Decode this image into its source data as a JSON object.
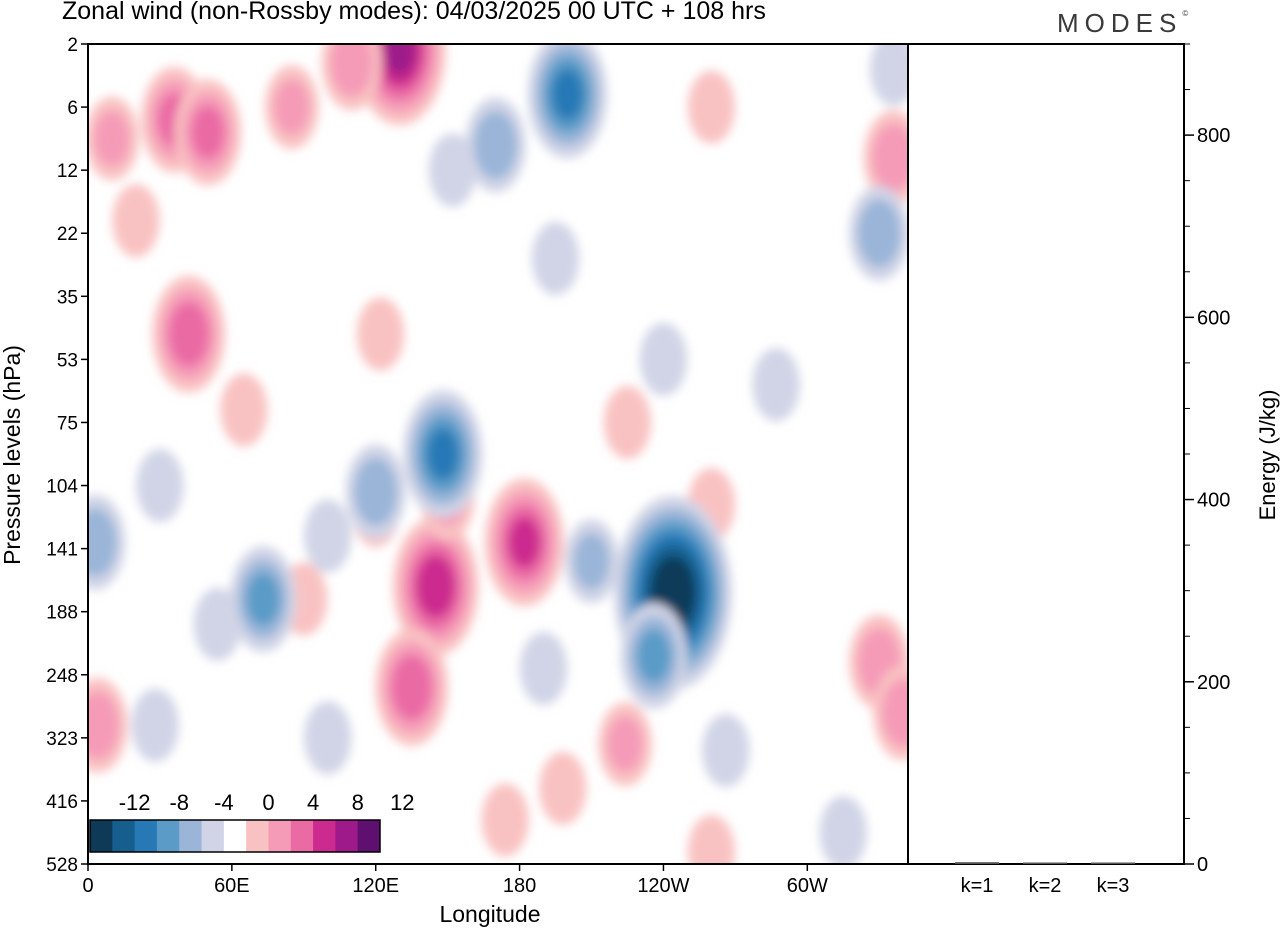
{
  "header": {
    "title": "Zonal wind (non-Rossby modes):  04/03/2025  00 UTC  + 108 hrs",
    "logo": "MODES",
    "logo_mark": "©"
  },
  "chart_data": [
    {
      "type": "heatmap",
      "title": "Zonal wind (non-Rossby modes):  04/03/2025  00 UTC  + 108 hrs",
      "xlabel": "Longitude",
      "ylabel": "Pressure levels (hPa)",
      "x_ticks": [
        {
          "lon": 0,
          "label": "0"
        },
        {
          "lon": 60,
          "label": "60E"
        },
        {
          "lon": 120,
          "label": "120E"
        },
        {
          "lon": 180,
          "label": "180"
        },
        {
          "lon": 240,
          "label": "120W"
        },
        {
          "lon": 300,
          "label": "60W"
        }
      ],
      "xlim": [
        0,
        342
      ],
      "y_levels": [
        "2",
        "6",
        "12",
        "22",
        "35",
        "53",
        "75",
        "104",
        "141",
        "188",
        "248",
        "323",
        "416",
        "528"
      ],
      "colorbar": {
        "labels": [
          "-12",
          "-8",
          "-4",
          "0",
          "4",
          "8",
          "12"
        ],
        "levels": [
          -14,
          -12,
          -10,
          -8,
          -6,
          -4,
          -2,
          2,
          4,
          6,
          8,
          10,
          12,
          14
        ],
        "colors": [
          "#0e3a58",
          "#155e8e",
          "#2779b6",
          "#5a9bc7",
          "#9ab5d8",
          "#d0d4e6",
          "#ffffff",
          "#f9c2c2",
          "#f59bb8",
          "#ea6aa4",
          "#cc2a8e",
          "#9e1a8a",
          "#5e0f70"
        ]
      },
      "features": [
        {
          "lon": 42,
          "level": 4.6,
          "value": 7
        },
        {
          "lon": 36,
          "level": 1.2,
          "value": 6
        },
        {
          "lon": 50,
          "level": 1.4,
          "value": 6
        },
        {
          "lon": 10,
          "level": 1.5,
          "value": 4
        },
        {
          "lon": 130,
          "level": 0.1,
          "value": 10
        },
        {
          "lon": 110,
          "level": 0.3,
          "value": 5
        },
        {
          "lon": 85,
          "level": 1.0,
          "value": 4
        },
        {
          "lon": 20,
          "level": 2.8,
          "value": 3
        },
        {
          "lon": 260,
          "level": 1.0,
          "value": 3
        },
        {
          "lon": 336,
          "level": 1.8,
          "value": 5
        },
        {
          "lon": 122,
          "level": 4.6,
          "value": 3
        },
        {
          "lon": 65,
          "level": 5.8,
          "value": 3
        },
        {
          "lon": 145,
          "level": 8.6,
          "value": 9
        },
        {
          "lon": 135,
          "level": 10.2,
          "value": 7
        },
        {
          "lon": 150,
          "level": 7.2,
          "value": 4
        },
        {
          "lon": 120,
          "level": 7.4,
          "value": 3
        },
        {
          "lon": 182,
          "level": 7.9,
          "value": 8
        },
        {
          "lon": 225,
          "level": 6.0,
          "value": 3
        },
        {
          "lon": 260,
          "level": 7.3,
          "value": 3
        },
        {
          "lon": 330,
          "level": 9.8,
          "value": 5
        },
        {
          "lon": 340,
          "level": 10.6,
          "value": 5
        },
        {
          "lon": 4,
          "level": 10.8,
          "value": 5
        },
        {
          "lon": 90,
          "level": 8.8,
          "value": 3
        },
        {
          "lon": 224,
          "level": 11.1,
          "value": 4
        },
        {
          "lon": 198,
          "level": 11.8,
          "value": 3
        },
        {
          "lon": 260,
          "level": 12.8,
          "value": 3
        },
        {
          "lon": 174,
          "level": 12.3,
          "value": 3
        },
        {
          "lon": 200,
          "level": 0.8,
          "value": -8
        },
        {
          "lon": 170,
          "level": 1.6,
          "value": -5
        },
        {
          "lon": 152,
          "level": 2.0,
          "value": -3
        },
        {
          "lon": 330,
          "level": 3.0,
          "value": -5
        },
        {
          "lon": 336,
          "level": 0.4,
          "value": -3
        },
        {
          "lon": 148,
          "level": 6.5,
          "value": -8
        },
        {
          "lon": 120,
          "level": 7.1,
          "value": -5
        },
        {
          "lon": 100,
          "level": 7.8,
          "value": -3
        },
        {
          "lon": 244,
          "level": 8.7,
          "value": -14
        },
        {
          "lon": 236,
          "level": 9.7,
          "value": -6
        },
        {
          "lon": 210,
          "level": 8.2,
          "value": -4
        },
        {
          "lon": 73,
          "level": 8.8,
          "value": -6
        },
        {
          "lon": 3,
          "level": 7.9,
          "value": -5
        },
        {
          "lon": 30,
          "level": 7.0,
          "value": -3
        },
        {
          "lon": 100,
          "level": 11.0,
          "value": -3
        },
        {
          "lon": 190,
          "level": 9.9,
          "value": -3
        },
        {
          "lon": 240,
          "level": 5.0,
          "value": -3
        },
        {
          "lon": 287,
          "level": 5.4,
          "value": -3
        },
        {
          "lon": 195,
          "level": 3.4,
          "value": -3
        },
        {
          "lon": 266,
          "level": 11.2,
          "value": -3
        },
        {
          "lon": 315,
          "level": 12.5,
          "value": -3
        },
        {
          "lon": 28,
          "level": 10.8,
          "value": -3
        },
        {
          "lon": 54,
          "level": 9.2,
          "value": -3
        }
      ]
    },
    {
      "type": "bar",
      "title": "",
      "categories": [
        "k=1",
        "k=2",
        "k=3"
      ],
      "values": [
        2,
        1,
        1
      ],
      "ylabel": "Energy (J/kg)",
      "ylim": [
        0,
        900
      ],
      "y_ticks": [
        "0",
        "200",
        "400",
        "600",
        "800"
      ],
      "grid": false
    }
  ]
}
